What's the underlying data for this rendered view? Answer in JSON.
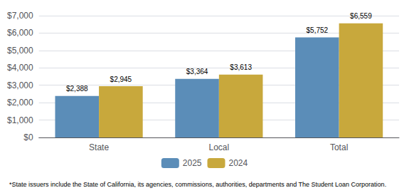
{
  "chart_data": {
    "type": "bar",
    "categories": [
      "State",
      "Local",
      "Total"
    ],
    "series": [
      {
        "name": "2025",
        "color": "#5b8db8",
        "values": [
          2388,
          3364,
          5752
        ],
        "value_labels": [
          "$2,388",
          "$3,364",
          "$5,752"
        ]
      },
      {
        "name": "2024",
        "color": "#c8a83c",
        "values": [
          2945,
          3613,
          6559
        ],
        "value_labels": [
          "$2,945",
          "$3,613",
          "$6,559"
        ]
      }
    ],
    "ylim": [
      0,
      7000
    ],
    "yticks": [
      {
        "value": 0,
        "label": "$0"
      },
      {
        "value": 1000,
        "label": "$1,000"
      },
      {
        "value": 2000,
        "label": "$2,000"
      },
      {
        "value": 3000,
        "label": "$3,000"
      },
      {
        "value": 4000,
        "label": "$4,000"
      },
      {
        "value": 5000,
        "label": "$5,000"
      },
      {
        "value": 6000,
        "label": "$6,000"
      },
      {
        "value": 7000,
        "label": "$7,000"
      }
    ],
    "grid": true,
    "legend": "bottom",
    "data_labels": true,
    "footnote": "*State issuers include the State of California, its agencies, commissions, authorities, departments and The Student Loan Corporation."
  }
}
